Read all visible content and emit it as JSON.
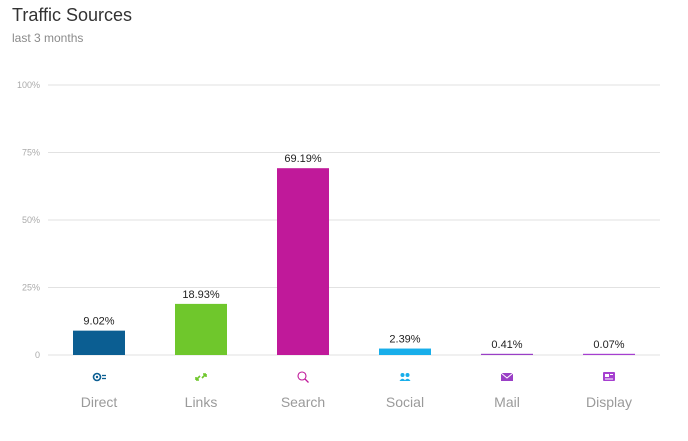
{
  "header": {
    "title": "Traffic Sources",
    "subtitle": "last 3 months"
  },
  "chart_data": {
    "type": "bar",
    "title": "Traffic Sources",
    "subtitle": "last 3 months",
    "xlabel": "",
    "ylabel": "",
    "ylim": [
      0,
      100
    ],
    "yticks": [
      0,
      25,
      50,
      75,
      100
    ],
    "ytick_labels": [
      "0",
      "25%",
      "50%",
      "75%",
      "100%"
    ],
    "grid": true,
    "legend": "none",
    "categories": [
      "Direct",
      "Links",
      "Search",
      "Social",
      "Mail",
      "Display"
    ],
    "values": [
      9.02,
      18.93,
      69.19,
      2.39,
      0.41,
      0.07
    ],
    "value_labels": [
      "9.02%",
      "18.93%",
      "69.19%",
      "2.39%",
      "0.41%",
      "0.07%"
    ],
    "colors": [
      "#0b5e92",
      "#6fc72c",
      "#c0199a",
      "#18aeea",
      "#9a3fc6",
      "#a63fd0"
    ],
    "icons": [
      "direct-icon",
      "links-icon",
      "search-icon",
      "social-icon",
      "mail-icon",
      "display-icon"
    ]
  }
}
